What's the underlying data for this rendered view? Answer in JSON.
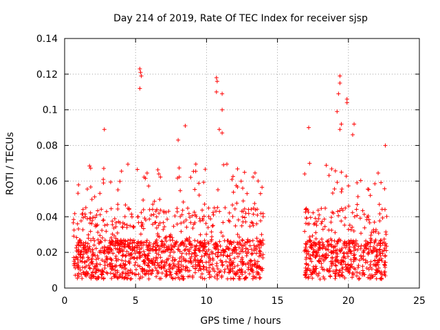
{
  "chart_data": {
    "type": "scatter",
    "title": "Day 214 of 2019, Rate Of TEC Index for receiver sjsp",
    "xlabel": "GPS time / hours",
    "ylabel": "ROTI / TECUs",
    "xlim": [
      0,
      25
    ],
    "ylim": [
      0,
      0.14
    ],
    "xticks": [
      0,
      5,
      10,
      15,
      20,
      25
    ],
    "xtick_labels": [
      "0",
      "5",
      "10",
      "15",
      "20",
      "25"
    ],
    "yticks": [
      0,
      0.02,
      0.04,
      0.06,
      0.08,
      0.1,
      0.12,
      0.14
    ],
    "ytick_labels": [
      "0",
      "0.02",
      "0.04",
      "0.06",
      "0.08",
      "0.1",
      "0.12",
      "0.14"
    ],
    "grid": true,
    "marker": "+",
    "marker_color": "#ff0000",
    "segments": [
      {
        "x_start": 0.6,
        "x_end": 14.0,
        "typical_max": 0.03,
        "description": "dense band"
      },
      {
        "x_start": 16.9,
        "x_end": 22.7,
        "typical_max": 0.03,
        "description": "dense band"
      }
    ],
    "notable_points": [
      {
        "x": 2.8,
        "y": 0.089
      },
      {
        "x": 5.3,
        "y": 0.123
      },
      {
        "x": 5.35,
        "y": 0.121
      },
      {
        "x": 5.4,
        "y": 0.119
      },
      {
        "x": 5.3,
        "y": 0.112
      },
      {
        "x": 8.0,
        "y": 0.083
      },
      {
        "x": 8.5,
        "y": 0.091
      },
      {
        "x": 10.7,
        "y": 0.118
      },
      {
        "x": 10.75,
        "y": 0.116
      },
      {
        "x": 10.7,
        "y": 0.11
      },
      {
        "x": 11.1,
        "y": 0.109
      },
      {
        "x": 11.1,
        "y": 0.1
      },
      {
        "x": 10.9,
        "y": 0.089
      },
      {
        "x": 11.1,
        "y": 0.087
      },
      {
        "x": 17.2,
        "y": 0.09
      },
      {
        "x": 19.4,
        "y": 0.119
      },
      {
        "x": 19.4,
        "y": 0.115
      },
      {
        "x": 19.3,
        "y": 0.109
      },
      {
        "x": 19.2,
        "y": 0.099
      },
      {
        "x": 19.9,
        "y": 0.106
      },
      {
        "x": 19.9,
        "y": 0.104
      },
      {
        "x": 19.5,
        "y": 0.092
      },
      {
        "x": 19.4,
        "y": 0.089
      },
      {
        "x": 20.4,
        "y": 0.092
      },
      {
        "x": 20.3,
        "y": 0.086
      },
      {
        "x": 22.6,
        "y": 0.08
      }
    ]
  }
}
